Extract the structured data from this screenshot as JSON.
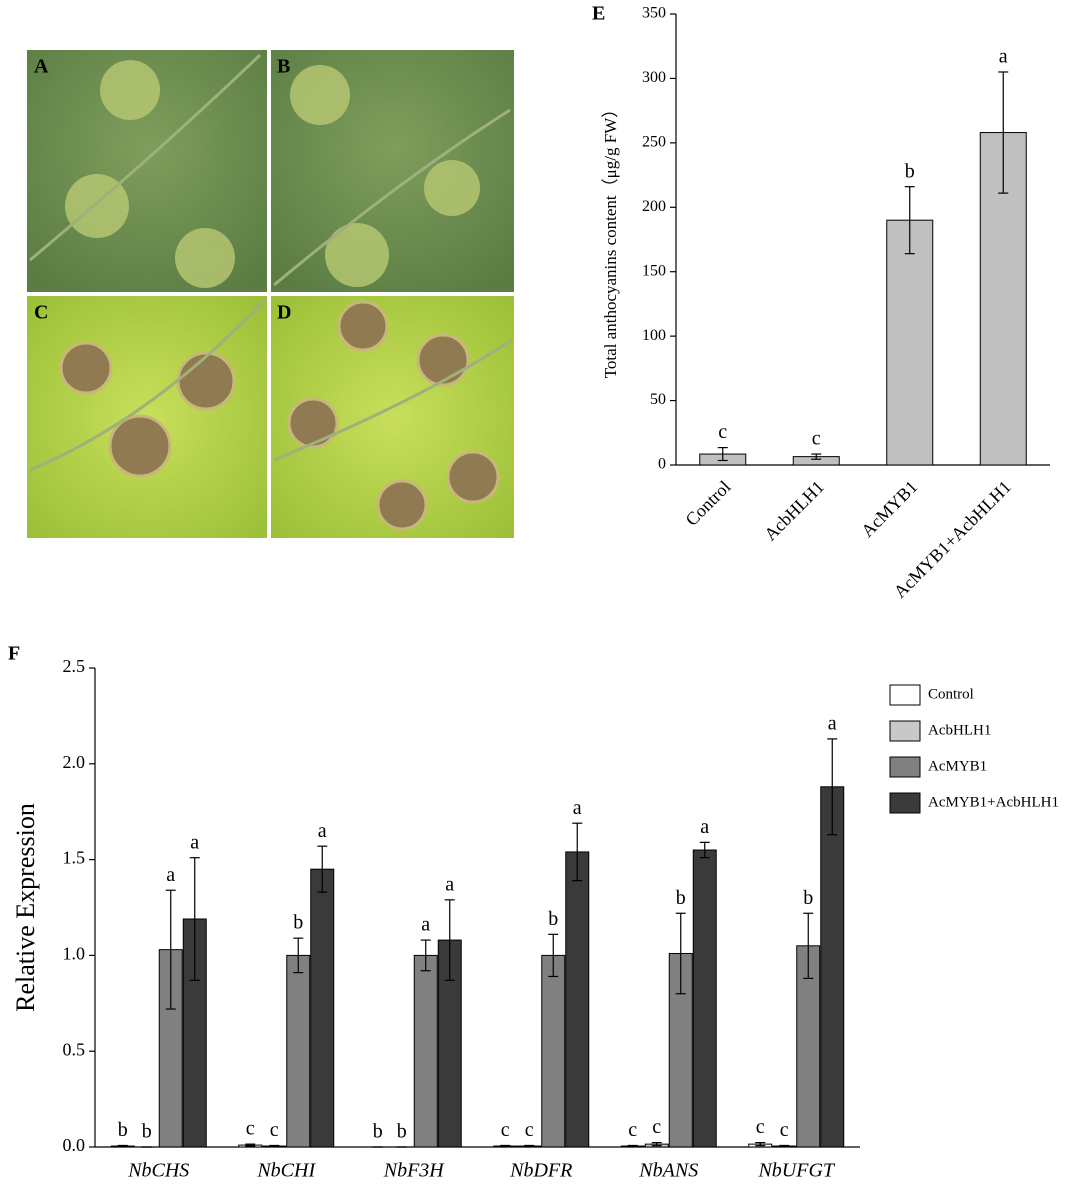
{
  "photos": {
    "labels": [
      "A",
      "B",
      "C",
      "D"
    ]
  },
  "chart_data": [
    {
      "type": "bar",
      "panel": "E",
      "ylabel": "Total anthocyanins content（μg/g FW）",
      "categories": [
        "Control",
        "AcbHLH1",
        "AcMYB1",
        "AcMYB1+AcbHLH1"
      ],
      "values": [
        8.5,
        6.5,
        190,
        258
      ],
      "errors": [
        5,
        2,
        26,
        47
      ],
      "letters": [
        "c",
        "c",
        "b",
        "a"
      ],
      "color": "#c0c0c0",
      "ylim": [
        0,
        350
      ],
      "yticks": [
        0,
        50,
        100,
        150,
        200,
        250,
        300,
        350
      ]
    },
    {
      "type": "bar",
      "panel": "F",
      "ylabel": "Relative Expression",
      "categories": [
        "NbCHS",
        "NbCHI",
        "NbF3H",
        "NbDFR",
        "NbANS",
        "NbUFGT"
      ],
      "series": [
        {
          "name": "Control",
          "color": "#ffffff",
          "values": [
            0.005,
            0.01,
            0,
            0.005,
            0.005,
            0.015
          ],
          "errors": [
            0.003,
            0.005,
            0,
            0.003,
            0.003,
            0.008
          ],
          "letters": [
            "b",
            "c",
            "b",
            "c",
            "c",
            "c"
          ]
        },
        {
          "name": "AcbHLH1",
          "color": "#c8c8c8",
          "values": [
            0,
            0.005,
            0,
            0.005,
            0.015,
            0.005
          ],
          "errors": [
            0,
            0.003,
            0,
            0.003,
            0.008,
            0.003
          ],
          "letters": [
            "b",
            "c",
            "b",
            "c",
            "c",
            "c"
          ]
        },
        {
          "name": "AcMYB1",
          "color": "#808080",
          "values": [
            1.03,
            1.0,
            1.0,
            1.0,
            1.01,
            1.05
          ],
          "errors": [
            0.31,
            0.09,
            0.08,
            0.11,
            0.21,
            0.17
          ],
          "letters": [
            "a",
            "b",
            "a",
            "b",
            "b",
            "b"
          ]
        },
        {
          "name": "AcMYB1+AcbHLH1",
          "color": "#3a3a3a",
          "values": [
            1.19,
            1.45,
            1.08,
            1.54,
            1.55,
            1.88
          ],
          "errors": [
            0.32,
            0.12,
            0.21,
            0.15,
            0.04,
            0.25
          ],
          "letters": [
            "a",
            "a",
            "a",
            "a",
            "a",
            "a"
          ]
        }
      ],
      "ylim": [
        0,
        2.5
      ],
      "yticks": [
        {
          "value": 0,
          "label": "0.0"
        },
        0.5,
        {
          "value": 1,
          "label": "1.0"
        },
        1.5,
        {
          "value": 2,
          "label": "2.0"
        },
        2.5
      ],
      "legend": "right"
    }
  ]
}
